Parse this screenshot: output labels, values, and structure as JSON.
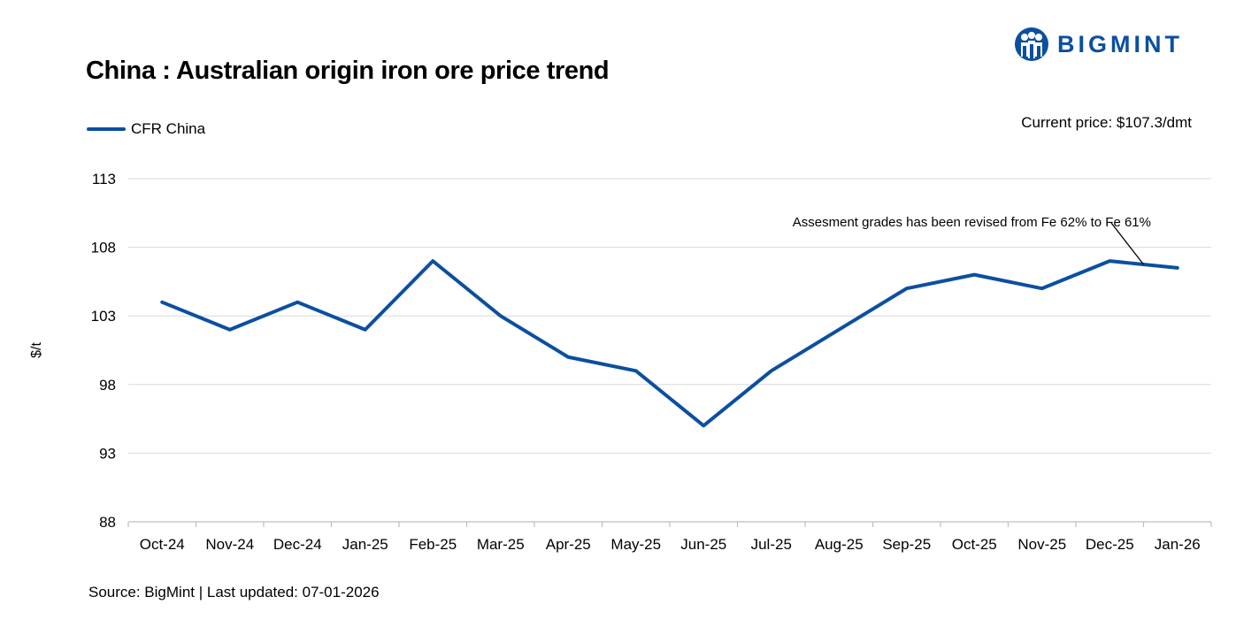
{
  "header": {
    "title": "China : Australian origin iron ore price trend",
    "current_price": "Current price: $107.3/dmt",
    "logo_text": "BIGMINT"
  },
  "footer": {
    "source": "Source: BigMint | Last updated: 07-01-2026"
  },
  "colors": {
    "series": "#0B4FA0",
    "grid": "#D9D9D9",
    "axis": "#BFBFBF"
  },
  "icons": {
    "logo": "bigmint-people-logo-icon"
  },
  "chart_data": {
    "type": "line",
    "categories": [
      "Oct-24",
      "Nov-24",
      "Dec-24",
      "Jan-25",
      "Feb-25",
      "Mar-25",
      "Apr-25",
      "May-25",
      "Jun-25",
      "Jul-25",
      "Aug-25",
      "Sep-25",
      "Oct-25",
      "Nov-25",
      "Dec-25",
      "Jan-26"
    ],
    "series": [
      {
        "name": "CFR China",
        "values": [
          104,
          102,
          104,
          102,
          107,
          103,
          100,
          99,
          95,
          99,
          102,
          105,
          106,
          105,
          107,
          106.5
        ]
      }
    ],
    "ylabel": "$/t",
    "xlabel": "",
    "ylim": [
      88,
      113
    ],
    "yticks": [
      88,
      93,
      98,
      103,
      108,
      113
    ],
    "grid": true,
    "legend": "top-left",
    "annotation": {
      "text": "Assesment grades has been revised from Fe 62% to Fe 61%",
      "x": "Dec-25"
    }
  }
}
